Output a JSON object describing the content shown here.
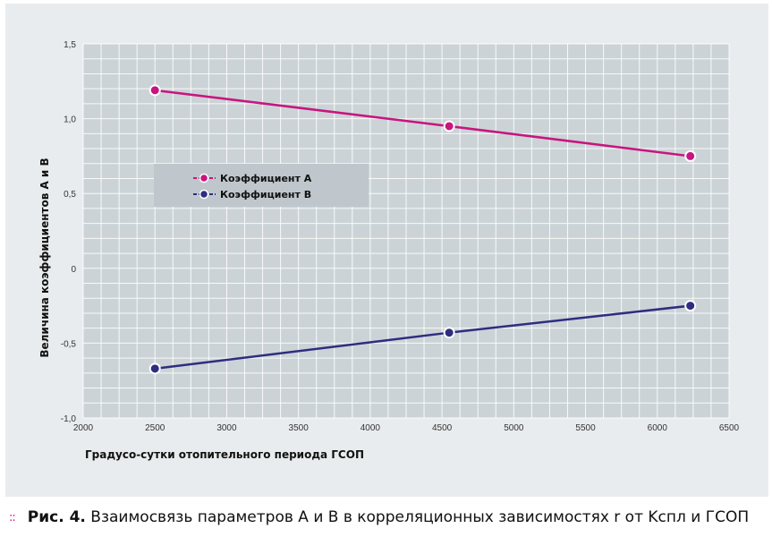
{
  "chart_data": {
    "type": "line",
    "xlabel": "Градусо-сутки отопительного периода ГСОП",
    "ylabel": "Величина коэффициентов A и B",
    "x_ticks": [
      "2000",
      "2500",
      "3000",
      "3500",
      "4000",
      "4500",
      "5000",
      "5500",
      "6000",
      "6500"
    ],
    "y_ticks": [
      "1,5",
      "1,0",
      "0,5",
      "0",
      "-0,5",
      "-1,0"
    ],
    "xlim": [
      2000,
      6500
    ],
    "ylim": [
      -1.0,
      1.5
    ],
    "grid": true,
    "legend_position": "upper-left",
    "series": [
      {
        "name": "Коэффициент A",
        "color": "#c8157f",
        "x": [
          2500,
          4550,
          6230
        ],
        "y": [
          1.19,
          0.95,
          0.75
        ]
      },
      {
        "name": "Коэффициент B",
        "color": "#2e2d7f",
        "x": [
          2500,
          4550,
          6230
        ],
        "y": [
          -0.67,
          -0.43,
          -0.25
        ]
      }
    ]
  },
  "caption": {
    "marker": "::",
    "label": "Рис. 4.",
    "text": "Взаимосвязь параметров A и B в корреляционных зависимостях r от Kспл и ГСОП"
  },
  "colors": {
    "plot_background": "#ccd3d7",
    "panel_background": "#e9ecee",
    "accent": "#e0147a"
  }
}
